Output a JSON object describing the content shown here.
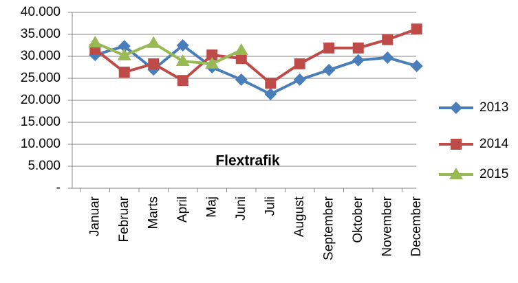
{
  "chart_data": {
    "type": "line",
    "title": "Flextrafik",
    "categories": [
      "Januar",
      "Februar",
      "Marts",
      "April",
      "Maj",
      "Juni",
      "Juli",
      "August",
      "September",
      "Oktober",
      "November",
      "December"
    ],
    "series": [
      {
        "name": "2013",
        "color": "#4a7ebb",
        "marker": "diamond",
        "values": [
          30300,
          32300,
          27000,
          32500,
          27500,
          24700,
          21400,
          24700,
          26900,
          29100,
          29700,
          27800
        ]
      },
      {
        "name": "2014",
        "color": "#be4b48",
        "marker": "square",
        "values": [
          31600,
          26400,
          28300,
          24500,
          30300,
          29500,
          23900,
          28300,
          31900,
          31900,
          33800,
          36200
        ]
      },
      {
        "name": "2015",
        "color": "#98b954",
        "marker": "triangle",
        "values": [
          33100,
          30200,
          33000,
          28900,
          28300,
          31400,
          null,
          null,
          null,
          null,
          null,
          null
        ]
      }
    ],
    "ylim": [
      0,
      40000
    ],
    "yticks": [
      {
        "value": 0,
        "label": "-"
      },
      {
        "value": 5000,
        "label": "5.000"
      },
      {
        "value": 10000,
        "label": "10.000"
      },
      {
        "value": 15000,
        "label": "15.000"
      },
      {
        "value": 20000,
        "label": "20.000"
      },
      {
        "value": 25000,
        "label": "25.000"
      },
      {
        "value": 30000,
        "label": "30.000"
      },
      {
        "value": 35000,
        "label": "35.000"
      },
      {
        "value": 40000,
        "label": "40.000"
      }
    ],
    "grid": true,
    "legend": "right"
  }
}
